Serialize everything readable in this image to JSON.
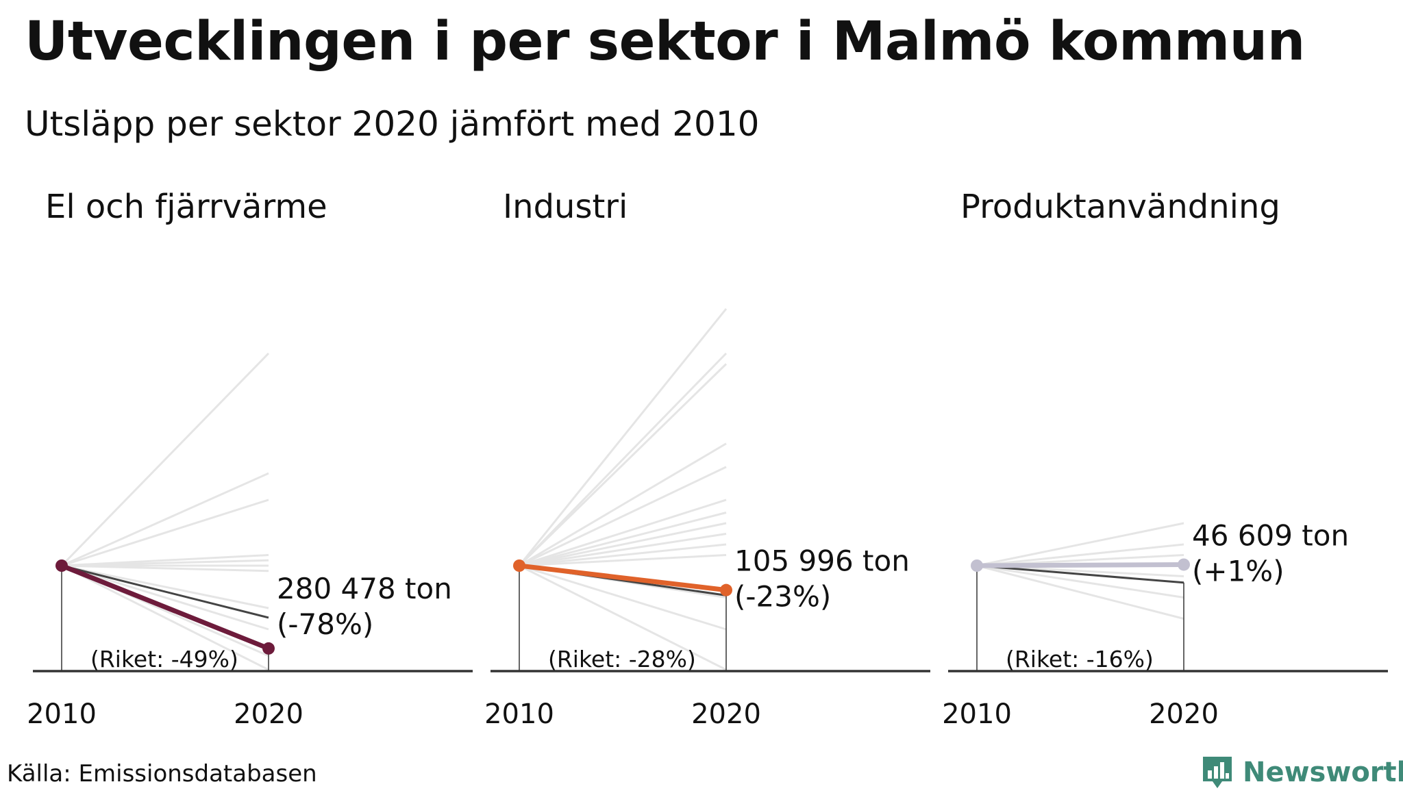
{
  "title": "Utvecklingen i per sektor i Malmö kommun",
  "subtitle": "Utsläpp per sektor 2020 jämfört med 2010",
  "source": "Källa: Emissionsdatabasen",
  "brand": "Newsworthy",
  "colors": {
    "background_lines": "#e5e5e5",
    "riket_line": "#444444",
    "axis": "#333333",
    "brand": "#3f8a78"
  },
  "chart_data": [
    {
      "type": "line",
      "title": "El och fjärrvärme",
      "x": [
        "2010",
        "2020"
      ],
      "highlight_color": "#6d1b3b",
      "highlight_change_pct": -78,
      "value_label": "280 478 ton",
      "change_label": "(-78%)",
      "riket_change_pct": -49,
      "riket_label": "(Riket: -49%)",
      "background_changes_pct": [
        200,
        87,
        62,
        10,
        5,
        0,
        -5,
        -40,
        -60,
        -85,
        -100
      ]
    },
    {
      "type": "line",
      "title": "Industri",
      "x": [
        "2010",
        "2020"
      ],
      "highlight_color": "#e0622a",
      "highlight_change_pct": -23,
      "value_label": "105 996 ton",
      "change_label": "(-23%)",
      "riket_change_pct": -28,
      "riket_label": "(Riket: -28%)",
      "background_changes_pct": [
        242,
        200,
        190,
        115,
        93,
        62,
        50,
        40,
        30,
        20,
        10,
        -30,
        -60,
        -100
      ]
    },
    {
      "type": "line",
      "title": "Produktanvändning",
      "x": [
        "2010",
        "2020"
      ],
      "highlight_color": "#c2c0d0",
      "highlight_change_pct": 1,
      "value_label": "46 609 ton",
      "change_label": "(+1%)",
      "riket_change_pct": -16,
      "riket_label": "(Riket: -16%)",
      "background_changes_pct": [
        40,
        20,
        10,
        -10,
        -30,
        -50
      ]
    }
  ]
}
